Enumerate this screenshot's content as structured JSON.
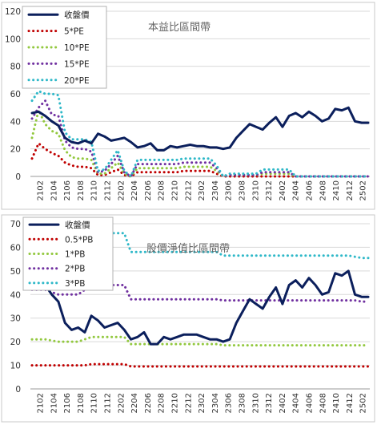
{
  "chart_data": [
    {
      "type": "line",
      "title": "本益比區間帶",
      "ylim": [
        0,
        120
      ],
      "yticks": [
        0,
        20,
        40,
        60,
        80,
        100,
        120
      ],
      "xtick_labels": [
        "2102",
        "2104",
        "2106",
        "2108",
        "2110",
        "2112",
        "2202",
        "2204",
        "2206",
        "2208",
        "2210",
        "2212",
        "2302",
        "2304",
        "2306",
        "2308",
        "2310",
        "2312",
        "2402",
        "2404",
        "2406",
        "2408",
        "2410",
        "2412",
        "2502"
      ],
      "legend_position": "top-left",
      "series": [
        {
          "name": "收盤價",
          "color": "#0b1f5c",
          "style": "solid",
          "values": [
            46,
            47,
            44,
            40,
            37,
            28,
            25,
            24,
            26,
            24,
            31,
            29,
            26,
            27,
            28,
            25,
            21,
            22,
            24,
            19,
            19,
            22,
            21,
            22,
            23,
            22,
            22,
            21,
            21,
            20,
            21,
            28,
            33,
            38,
            36,
            34,
            39,
            43,
            36,
            44,
            46,
            43,
            47,
            44,
            40,
            42,
            49,
            48,
            50,
            40,
            39,
            39
          ]
        },
        {
          "name": "5*PE",
          "color": "#c00000",
          "style": "dotted",
          "values": [
            13,
            24,
            20,
            17,
            15,
            10,
            8,
            7,
            7,
            6,
            1,
            1,
            3,
            5,
            1,
            0,
            3,
            3,
            3,
            3,
            3,
            3,
            3,
            4,
            4,
            4,
            4,
            4,
            2,
            0,
            0,
            0,
            0,
            0,
            0,
            0,
            0,
            0,
            0,
            0,
            0,
            0,
            0,
            0,
            0,
            0,
            0,
            0,
            0,
            0,
            0,
            0
          ]
        },
        {
          "name": "10*PE",
          "color": "#92c83e",
          "style": "dotted",
          "values": [
            28,
            48,
            38,
            33,
            31,
            19,
            14,
            13,
            13,
            12,
            2,
            2,
            6,
            10,
            2,
            0,
            6,
            6,
            6,
            6,
            6,
            6,
            6,
            7,
            7,
            7,
            7,
            7,
            4,
            0,
            1,
            1,
            1,
            1,
            1,
            2,
            2,
            2,
            2,
            2,
            0,
            0,
            0,
            0,
            0,
            0,
            0,
            0,
            0,
            0,
            0,
            0
          ]
        },
        {
          "name": "15*PE",
          "color": "#7030a0",
          "style": "dotted",
          "values": [
            42,
            50,
            55,
            45,
            44,
            26,
            21,
            20,
            20,
            18,
            3,
            4,
            9,
            15,
            3,
            0,
            9,
            9,
            9,
            9,
            9,
            9,
            9,
            10,
            10,
            10,
            10,
            10,
            6,
            0,
            1,
            1,
            1,
            1,
            1,
            3,
            3,
            3,
            3,
            3,
            0,
            0,
            0,
            0,
            0,
            0,
            0,
            0,
            0,
            0,
            0,
            0
          ]
        },
        {
          "name": "20*PE",
          "color": "#2eb8c8",
          "style": "dotted",
          "values": [
            55,
            62,
            60,
            60,
            59,
            32,
            27,
            27,
            27,
            25,
            4,
            5,
            12,
            19,
            4,
            0,
            12,
            12,
            12,
            12,
            12,
            12,
            12,
            13,
            13,
            13,
            13,
            13,
            8,
            0,
            2,
            2,
            2,
            2,
            2,
            5,
            5,
            5,
            5,
            5,
            0,
            0,
            0,
            0,
            0,
            0,
            0,
            0,
            0,
            0,
            0,
            0
          ]
        }
      ]
    },
    {
      "type": "line",
      "title": "股價淨值比區間帶",
      "ylim": [
        0,
        70
      ],
      "yticks": [
        0,
        10,
        20,
        30,
        40,
        50,
        60,
        70
      ],
      "xtick_labels": [
        "2102",
        "2104",
        "2106",
        "2108",
        "2110",
        "2112",
        "2202",
        "2204",
        "2206",
        "2208",
        "2210",
        "2212",
        "2302",
        "2304",
        "2306",
        "2308",
        "2310",
        "2312",
        "2402",
        "2404",
        "2406",
        "2408",
        "2410",
        "2412",
        "2502"
      ],
      "legend_position": "top-left",
      "series": [
        {
          "name": "收盤價",
          "color": "#0b1f5c",
          "style": "solid",
          "values": [
            46,
            47,
            44,
            40,
            37,
            28,
            25,
            26,
            24,
            31,
            29,
            26,
            27,
            28,
            25,
            21,
            22,
            24,
            19,
            19,
            22,
            21,
            22,
            23,
            23,
            23,
            22,
            21,
            21,
            20,
            21,
            28,
            33,
            38,
            36,
            34,
            39,
            43,
            36,
            44,
            46,
            43,
            47,
            44,
            40,
            41,
            49,
            48,
            50,
            40,
            39,
            39
          ]
        },
        {
          "name": "0.5*PB",
          "color": "#c00000",
          "style": "dotted",
          "values": [
            10,
            10,
            10,
            10,
            10,
            10,
            10,
            10,
            10,
            10.5,
            10.5,
            10.5,
            10.5,
            10.5,
            10.5,
            9.5,
            9.5,
            9.5,
            9.5,
            9.5,
            9.5,
            9.5,
            9.5,
            9.5,
            9.5,
            9.5,
            9.5,
            9.5,
            9.5,
            9.5,
            9.5,
            9.5,
            9.5,
            9.5,
            9.5,
            9.5,
            9.5,
            9.5,
            9.5,
            9.5,
            9.5,
            9.5,
            9.5,
            9.5,
            9.5,
            9.5,
            9.5,
            9.5,
            9.5,
            9.5,
            9.5,
            9.5
          ]
        },
        {
          "name": "1*PB",
          "color": "#92c83e",
          "style": "dotted",
          "values": [
            21,
            21,
            21,
            20.5,
            20,
            20,
            20,
            20,
            21,
            22,
            22,
            22,
            22,
            22,
            22,
            19,
            19,
            19,
            19,
            19,
            19,
            19,
            19,
            19,
            19,
            19,
            19,
            19,
            19,
            18.5,
            18.5,
            18.5,
            18.5,
            18.5,
            18.5,
            18.5,
            18.5,
            18.5,
            18.5,
            18.5,
            18.5,
            18.5,
            18.5,
            18.5,
            18.5,
            18.5,
            18.5,
            18.5,
            18.5,
            18.5,
            18.5,
            18.5
          ]
        },
        {
          "name": "2*PB",
          "color": "#7030a0",
          "style": "dotted",
          "values": [
            42,
            42,
            42,
            41,
            40,
            40,
            40,
            40,
            42,
            44,
            44,
            44,
            44,
            44,
            44,
            38,
            38,
            38,
            38,
            38,
            38,
            38,
            38,
            38,
            38,
            38,
            38,
            38,
            38,
            37.5,
            37.5,
            37.5,
            37.5,
            37.5,
            37.5,
            37.5,
            37.5,
            37.5,
            37.5,
            37.5,
            37.5,
            37.5,
            37.5,
            37.5,
            37.5,
            37.5,
            37.5,
            37.5,
            37.5,
            37.5,
            37,
            37
          ]
        },
        {
          "name": "3*PB",
          "color": "#2eb8c8",
          "style": "dotted",
          "values": [
            63,
            63,
            63,
            61,
            60,
            60,
            60,
            60,
            63,
            66,
            66,
            66,
            66,
            66,
            66,
            58,
            58,
            58,
            58,
            58,
            58,
            58,
            58,
            58,
            58,
            58,
            58,
            58,
            58,
            56.5,
            56.5,
            56.5,
            56.5,
            56.5,
            56.5,
            56.5,
            56.5,
            56.5,
            56.5,
            56.5,
            56.5,
            56.5,
            56.5,
            56.5,
            56.5,
            56.5,
            56.5,
            56.5,
            56.5,
            56,
            55.5,
            55.5
          ]
        }
      ]
    }
  ]
}
